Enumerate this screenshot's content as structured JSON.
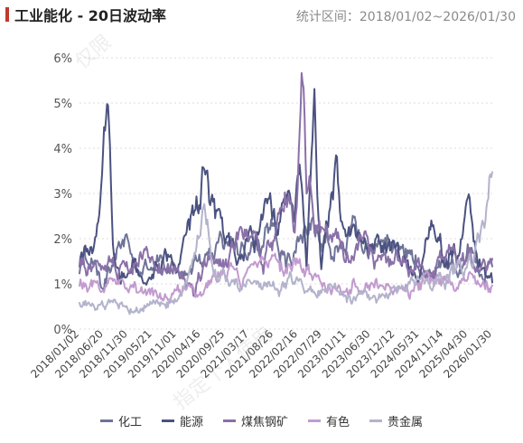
{
  "header": {
    "title": "工业能化 - 20日波动率",
    "date_range": "统计区间：2018/01/02~2026/01/30"
  },
  "watermarks": [
    "仅限",
    "指定个人使用"
  ],
  "chart_data": {
    "type": "line",
    "title": "工业能化 - 20日波动率",
    "xlabel": "",
    "ylabel": "",
    "x_range": [
      "2018/01/02",
      "2026/01/30"
    ],
    "ylim": [
      0,
      6
    ],
    "y_ticks": [
      0,
      1,
      2,
      3,
      4,
      5,
      6
    ],
    "y_tick_labels": [
      "0%",
      "1%",
      "2%",
      "3%",
      "4%",
      "5%",
      "6%"
    ],
    "x_tick_labels": [
      "2018/01/02",
      "2018/06/20",
      "2018/11/30",
      "2019/05/21",
      "2019/11/01",
      "2020/04/16",
      "2020/09/25",
      "2021/03/17",
      "2021/08/26",
      "2022/02/16",
      "2022/07/29",
      "2023/01/11",
      "2023/06/30",
      "2023/12/12",
      "2024/05/31",
      "2024/11/14",
      "2025/04/30",
      "2026/01/30"
    ],
    "grid": true,
    "legend_position": "bottom",
    "series": [
      {
        "name": "化工",
        "color": "#6f7398",
        "anchors": [
          [
            0,
            1.3
          ],
          [
            0.03,
            1.6
          ],
          [
            0.06,
            1.2
          ],
          [
            0.12,
            1.9
          ],
          [
            0.14,
            1.3
          ],
          [
            0.2,
            1.6
          ],
          [
            0.26,
            1.2
          ],
          [
            0.3,
            1.6
          ],
          [
            0.36,
            2.0
          ],
          [
            0.42,
            1.8
          ],
          [
            0.46,
            2.4
          ],
          [
            0.5,
            1.5
          ],
          [
            0.54,
            2.4
          ],
          [
            0.58,
            2.1
          ],
          [
            0.63,
            2.0
          ],
          [
            0.66,
            2.3
          ],
          [
            0.7,
            1.5
          ],
          [
            0.74,
            2.0
          ],
          [
            0.8,
            1.7
          ],
          [
            0.84,
            1.1
          ],
          [
            0.88,
            1.6
          ],
          [
            0.92,
            1.3
          ],
          [
            0.95,
            1.8
          ],
          [
            0.98,
            1.2
          ],
          [
            1.0,
            1.4
          ]
        ]
      },
      {
        "name": "能源",
        "color": "#4b5280",
        "anchors": [
          [
            0,
            1.4
          ],
          [
            0.03,
            1.6
          ],
          [
            0.05,
            2.2
          ],
          [
            0.06,
            4.7
          ],
          [
            0.07,
            4.8
          ],
          [
            0.08,
            2.0
          ],
          [
            0.1,
            1.4
          ],
          [
            0.13,
            1.5
          ],
          [
            0.16,
            1.0
          ],
          [
            0.2,
            1.7
          ],
          [
            0.24,
            1.3
          ],
          [
            0.28,
            2.4
          ],
          [
            0.3,
            3.6
          ],
          [
            0.32,
            2.8
          ],
          [
            0.34,
            2.1
          ],
          [
            0.38,
            1.6
          ],
          [
            0.42,
            2.1
          ],
          [
            0.46,
            2.7
          ],
          [
            0.48,
            2.0
          ],
          [
            0.5,
            3.0
          ],
          [
            0.52,
            2.0
          ],
          [
            0.535,
            3.8
          ],
          [
            0.55,
            1.6
          ],
          [
            0.57,
            4.6
          ],
          [
            0.585,
            1.6
          ],
          [
            0.6,
            2.2
          ],
          [
            0.62,
            3.3
          ],
          [
            0.64,
            2.1
          ],
          [
            0.67,
            2.4
          ],
          [
            0.7,
            1.5
          ],
          [
            0.73,
            1.8
          ],
          [
            0.76,
            1.6
          ],
          [
            0.8,
            1.4
          ],
          [
            0.83,
            1.5
          ],
          [
            0.86,
            2.8
          ],
          [
            0.88,
            1.5
          ],
          [
            0.9,
            1.8
          ],
          [
            0.92,
            1.5
          ],
          [
            0.94,
            2.8
          ],
          [
            0.96,
            1.5
          ],
          [
            1.0,
            1.1
          ]
        ]
      },
      {
        "name": "煤焦钢矿",
        "color": "#8a70a8",
        "anchors": [
          [
            0,
            1.5
          ],
          [
            0.04,
            1.2
          ],
          [
            0.08,
            1.4
          ],
          [
            0.12,
            1.0
          ],
          [
            0.16,
            1.6
          ],
          [
            0.2,
            1.3
          ],
          [
            0.24,
            1.5
          ],
          [
            0.28,
            1.1
          ],
          [
            0.32,
            1.8
          ],
          [
            0.36,
            1.3
          ],
          [
            0.4,
            2.1
          ],
          [
            0.44,
            1.8
          ],
          [
            0.48,
            2.3
          ],
          [
            0.5,
            3.0
          ],
          [
            0.52,
            2.2
          ],
          [
            0.54,
            5.6
          ],
          [
            0.55,
            3.5
          ],
          [
            0.57,
            2.3
          ],
          [
            0.6,
            1.9
          ],
          [
            0.64,
            1.6
          ],
          [
            0.68,
            1.8
          ],
          [
            0.72,
            1.4
          ],
          [
            0.76,
            1.7
          ],
          [
            0.8,
            1.5
          ],
          [
            0.84,
            1.3
          ],
          [
            0.88,
            1.6
          ],
          [
            0.92,
            1.8
          ],
          [
            0.96,
            1.3
          ],
          [
            1.0,
            1.2
          ]
        ]
      },
      {
        "name": "有色",
        "color": "#c29bcf",
        "anchors": [
          [
            0,
            1.0
          ],
          [
            0.04,
            0.9
          ],
          [
            0.08,
            1.0
          ],
          [
            0.12,
            0.8
          ],
          [
            0.16,
            0.9
          ],
          [
            0.2,
            0.7
          ],
          [
            0.24,
            0.8
          ],
          [
            0.28,
            0.9
          ],
          [
            0.32,
            1.0
          ],
          [
            0.36,
            1.2
          ],
          [
            0.4,
            1.1
          ],
          [
            0.44,
            1.3
          ],
          [
            0.48,
            1.2
          ],
          [
            0.52,
            1.5
          ],
          [
            0.56,
            1.2
          ],
          [
            0.6,
            1.1
          ],
          [
            0.64,
            1.0
          ],
          [
            0.68,
            0.9
          ],
          [
            0.72,
            1.0
          ],
          [
            0.76,
            0.9
          ],
          [
            0.8,
            0.8
          ],
          [
            0.84,
            1.1
          ],
          [
            0.88,
            1.0
          ],
          [
            0.92,
            0.9
          ],
          [
            0.96,
            1.1
          ],
          [
            1.0,
            1.0
          ]
        ]
      },
      {
        "name": "贵金属",
        "color": "#b3b3cc",
        "anchors": [
          [
            0,
            0.5
          ],
          [
            0.04,
            0.5
          ],
          [
            0.08,
            0.6
          ],
          [
            0.12,
            0.4
          ],
          [
            0.16,
            0.5
          ],
          [
            0.2,
            0.5
          ],
          [
            0.24,
            0.6
          ],
          [
            0.27,
            1.2
          ],
          [
            0.3,
            2.6
          ],
          [
            0.33,
            1.5
          ],
          [
            0.36,
            1.0
          ],
          [
            0.4,
            0.9
          ],
          [
            0.44,
            1.0
          ],
          [
            0.48,
            0.9
          ],
          [
            0.52,
            1.1
          ],
          [
            0.56,
            0.9
          ],
          [
            0.6,
            0.8
          ],
          [
            0.64,
            0.8
          ],
          [
            0.68,
            0.7
          ],
          [
            0.72,
            0.7
          ],
          [
            0.76,
            0.8
          ],
          [
            0.8,
            0.9
          ],
          [
            0.84,
            1.0
          ],
          [
            0.88,
            1.2
          ],
          [
            0.92,
            1.5
          ],
          [
            0.95,
            1.3
          ],
          [
            0.97,
            1.9
          ],
          [
            0.985,
            2.8
          ],
          [
            0.995,
            3.5
          ],
          [
            1.0,
            3.3
          ]
        ]
      }
    ]
  }
}
